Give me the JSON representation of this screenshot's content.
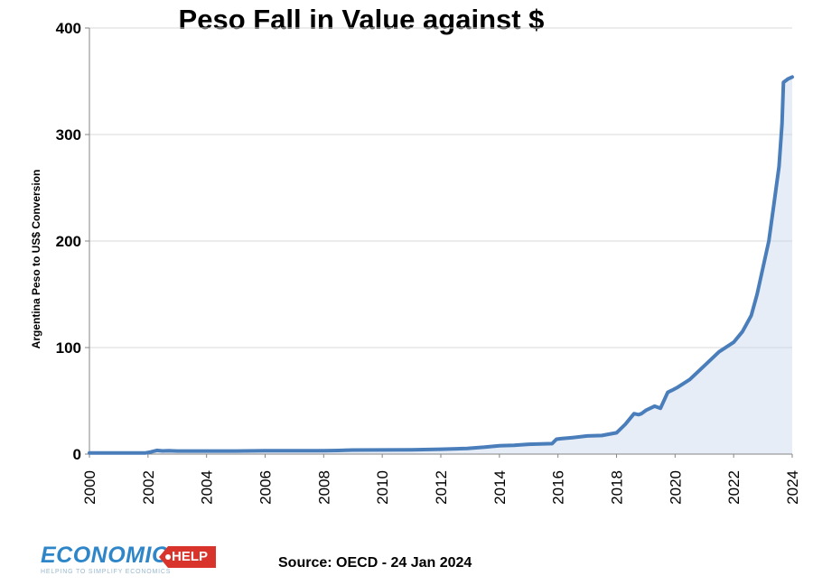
{
  "title": "Peso Fall in Value against $",
  "source": "Source: OECD - 24 Jan 2024",
  "logo": {
    "word": "ECONOMICS",
    "tag": "HELP",
    "slogan": "HELPING TO SIMPLIFY ECONOMICS"
  },
  "colors": {
    "line": "#4a7ebb",
    "fill": "#c9d7ea",
    "grid": "#d9d9d9",
    "axis": "#868686",
    "logo_blue": "#2e86c8",
    "logo_red": "#d9342b"
  },
  "chart_data": {
    "type": "line",
    "title": "Peso Fall in Value against $",
    "xlabel": "",
    "ylabel": "Argentina Peso to US$ Conversion",
    "xlim": [
      2000,
      2024
    ],
    "ylim": [
      0,
      400
    ],
    "grid": true,
    "legend": "none",
    "x_ticks": [
      "2000",
      "2002",
      "2004",
      "2006",
      "2008",
      "2010",
      "2012",
      "2014",
      "2016",
      "2018",
      "2020",
      "2022",
      "2024"
    ],
    "y_ticks": [
      "0",
      "100",
      "200",
      "300",
      "400"
    ],
    "series": [
      {
        "x": [
          2000,
          2001,
          2001.9,
          2002.1,
          2002.3,
          2002.5,
          2002.7,
          2003,
          2004,
          2005,
          2006,
          2007,
          2008,
          2008.5,
          2009,
          2010,
          2011,
          2012,
          2012.9,
          2013.5,
          2014,
          2014.1,
          2014.5,
          2015,
          2015.8,
          2015.95,
          2016.1,
          2016.5,
          2017,
          2017.5,
          2018,
          2018.3,
          2018.6,
          2018.75,
          2018.85,
          2019,
          2019.3,
          2019.5,
          2019.75,
          2019.9,
          2020.1,
          2020.5,
          2021,
          2021.5,
          2022,
          2022.3,
          2022.6,
          2022.8,
          2023,
          2023.2,
          2023.4,
          2023.55,
          2023.65,
          2023.7,
          2023.75,
          2023.85,
          2024
        ],
        "y": [
          1,
          1,
          1,
          2,
          3.5,
          3,
          3.2,
          2.9,
          2.9,
          2.9,
          3.1,
          3.1,
          3.2,
          3.4,
          3.8,
          3.9,
          4.1,
          4.6,
          5.3,
          6.5,
          7.9,
          8.0,
          8.3,
          9.2,
          9.8,
          14,
          14.5,
          15.5,
          17,
          17.5,
          20,
          28,
          38,
          37,
          38,
          41,
          45,
          43,
          58,
          60,
          63,
          70,
          83,
          96,
          105,
          115,
          130,
          150,
          175,
          200,
          240,
          270,
          310,
          349,
          350,
          352,
          354
        ]
      }
    ]
  }
}
